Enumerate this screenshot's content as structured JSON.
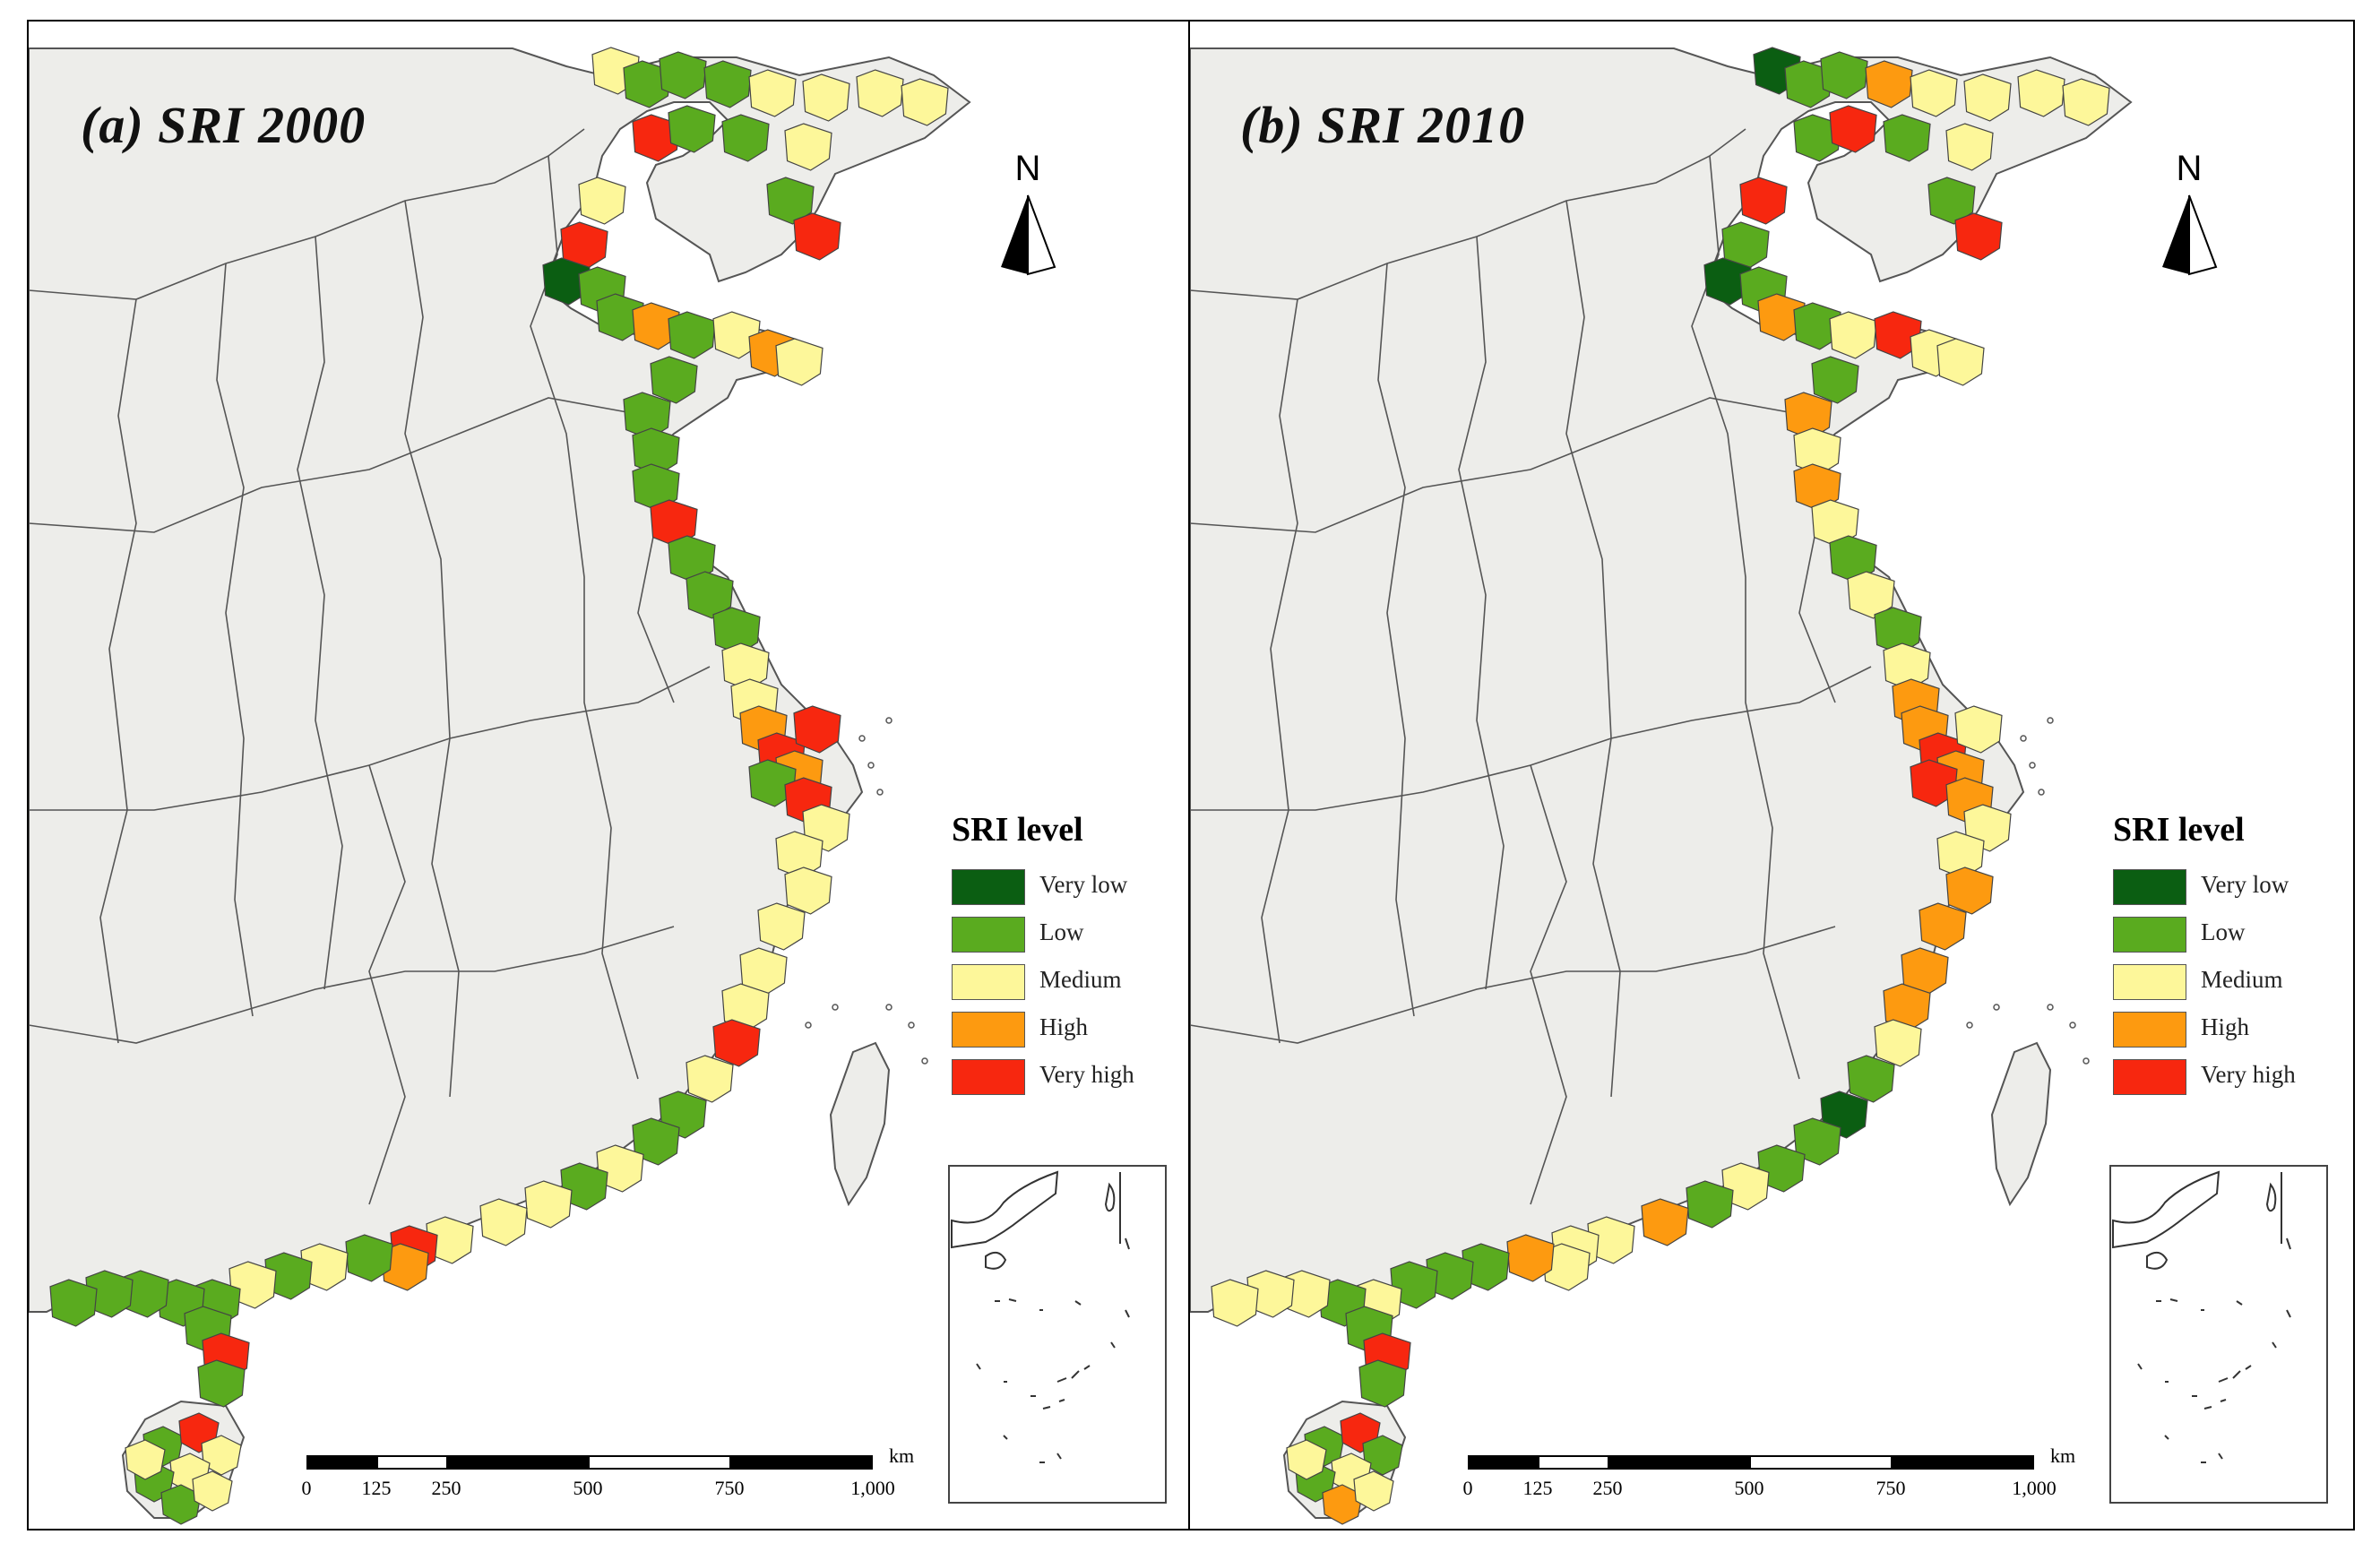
{
  "panels": [
    {
      "id": "a",
      "title": "(a) SRI 2000"
    },
    {
      "id": "b",
      "title": "(b) SRI 2010"
    }
  ],
  "north_arrow": {
    "label": "N"
  },
  "legend": {
    "title": "SRI level",
    "items": [
      {
        "label": "Very low",
        "color": "#0b5e12"
      },
      {
        "label": "Low",
        "color": "#5aab1f"
      },
      {
        "label": "Medium",
        "color": "#fdf79a"
      },
      {
        "label": "High",
        "color": "#fd9a10"
      },
      {
        "label": "Very high",
        "color": "#f7270f"
      }
    ]
  },
  "scale_bar": {
    "unit": "km",
    "ticks": [
      "0",
      "125",
      "250",
      "500",
      "750",
      "1,000"
    ]
  },
  "colors": {
    "land": "#ededea",
    "sea": "#ffffff",
    "boundary": "#555555"
  }
}
